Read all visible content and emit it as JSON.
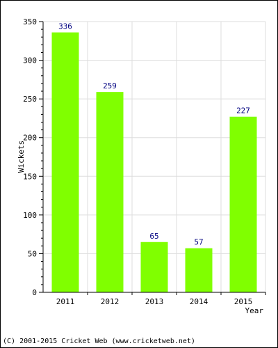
{
  "chart_data": {
    "type": "bar",
    "categories": [
      "2011",
      "2012",
      "2013",
      "2014",
      "2015"
    ],
    "values": [
      336,
      259,
      65,
      57,
      227
    ],
    "data_labels": [
      "336",
      "259",
      "65",
      "57",
      "227"
    ],
    "title": "",
    "xlabel": "Year",
    "ylabel": "Wickets",
    "ylim": [
      0,
      350
    ],
    "yticks": [
      0,
      50,
      100,
      150,
      200,
      250,
      300,
      350
    ],
    "grid": true,
    "legend": "none",
    "colors": {
      "bar": "#80ff00",
      "label": "#000080",
      "grid": "#dddddd",
      "axis": "#000000"
    }
  },
  "footer": {
    "credit": "(C) 2001-2015 Cricket Web (www.cricketweb.net)"
  }
}
